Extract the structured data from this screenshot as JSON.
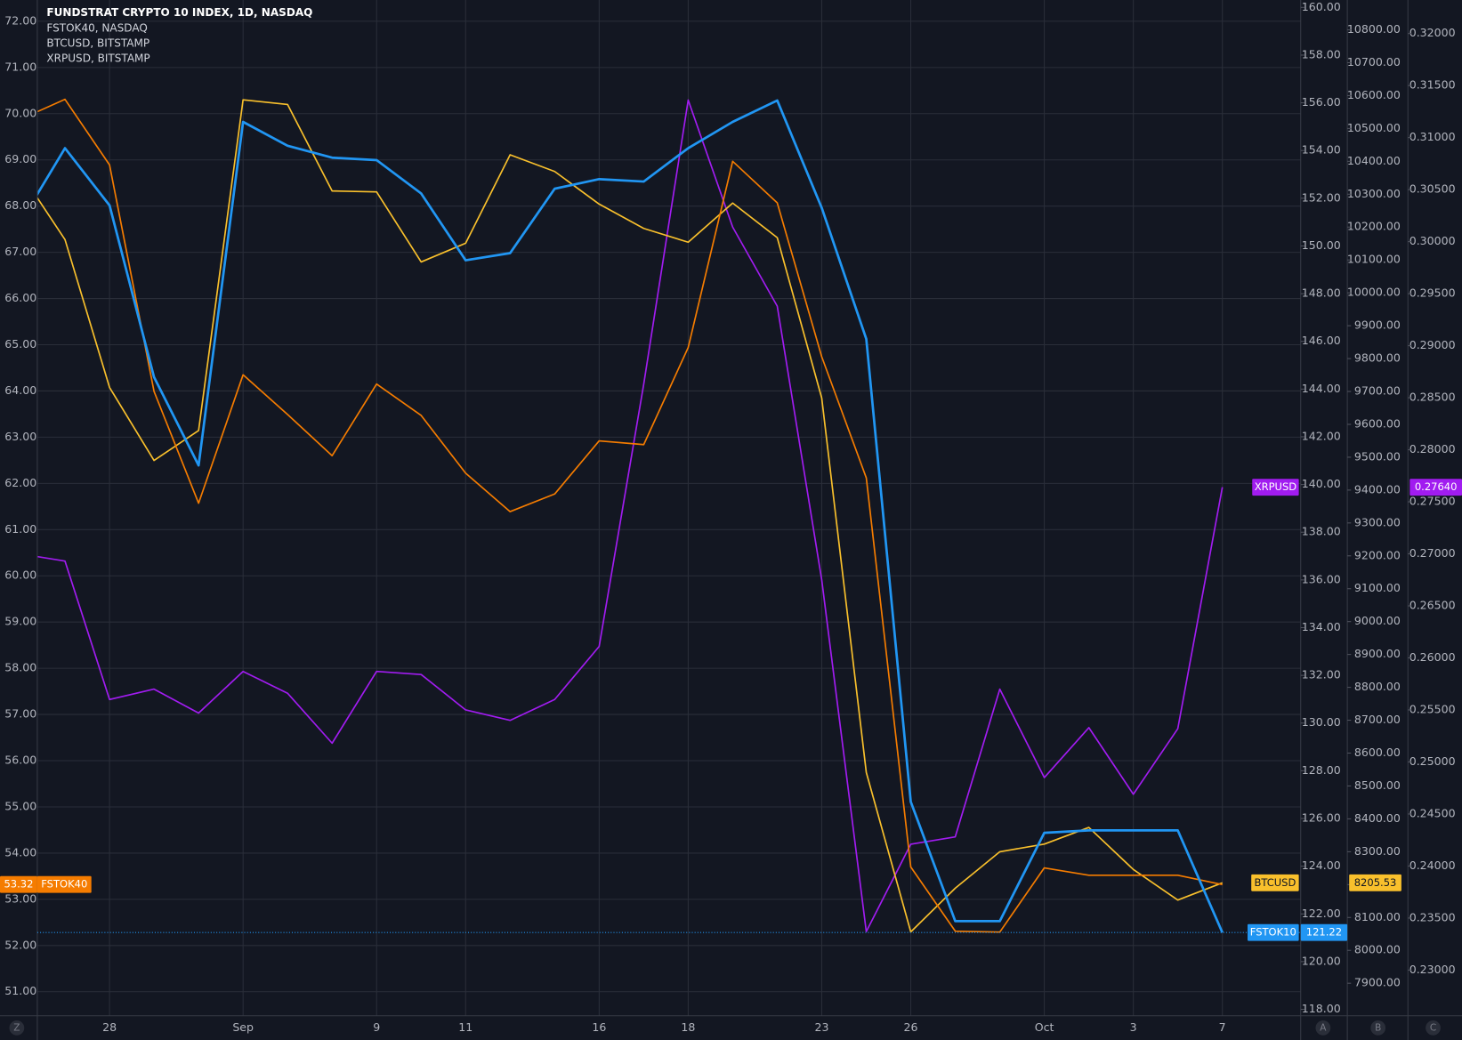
{
  "chart_data": {
    "type": "line",
    "background": "#131722",
    "grid": true,
    "categories": [
      null,
      null,
      "28",
      null,
      null,
      "Sep",
      null,
      null,
      "9",
      null,
      "11",
      null,
      null,
      "16",
      null,
      "18",
      null,
      null,
      "23",
      null,
      "26",
      null,
      null,
      "Oct",
      null,
      "3",
      null,
      "7"
    ],
    "axis_buttons": [
      "Z",
      "A",
      "B",
      "C"
    ],
    "ylim": [
      50.48,
      72.46
    ],
    "yticks": [
      {
        "value": 51,
        "label": "51.00"
      },
      {
        "value": 52,
        "label": "52.00"
      },
      {
        "value": 53,
        "label": "53.00"
      },
      {
        "value": 54,
        "label": "54.00"
      },
      {
        "value": 55,
        "label": "55.00"
      },
      {
        "value": 56,
        "label": "56.00"
      },
      {
        "value": 57,
        "label": "57.00"
      },
      {
        "value": 58,
        "label": "58.00"
      },
      {
        "value": 59,
        "label": "59.00"
      },
      {
        "value": 60,
        "label": "60.00"
      },
      {
        "value": 61,
        "label": "61.00"
      },
      {
        "value": 62,
        "label": "62.00"
      },
      {
        "value": 63,
        "label": "63.00"
      },
      {
        "value": 64,
        "label": "64.00"
      },
      {
        "value": 65,
        "label": "65.00"
      },
      {
        "value": 66,
        "label": "66.00"
      },
      {
        "value": 67,
        "label": "67.00"
      },
      {
        "value": 68,
        "label": "68.00"
      },
      {
        "value": 69,
        "label": "69.00"
      },
      {
        "value": 70,
        "label": "70.00"
      },
      {
        "value": 71,
        "label": "71.00"
      },
      {
        "value": 72,
        "label": "72.00"
      }
    ],
    "y2lim": [
      117.73,
      160.31
    ],
    "y2ticks": [
      {
        "value": 118,
        "label": "118.00"
      },
      {
        "value": 120,
        "label": "120.00"
      },
      {
        "value": 122,
        "label": "122.00"
      },
      {
        "value": 124,
        "label": "124.00"
      },
      {
        "value": 126,
        "label": "126.00"
      },
      {
        "value": 128,
        "label": "128.00"
      },
      {
        "value": 130,
        "label": "130.00"
      },
      {
        "value": 132,
        "label": "132.00"
      },
      {
        "value": 134,
        "label": "134.00"
      },
      {
        "value": 136,
        "label": "136.00"
      },
      {
        "value": 138,
        "label": "138.00"
      },
      {
        "value": 140,
        "label": "140.00"
      },
      {
        "value": 142,
        "label": "142.00"
      },
      {
        "value": 144,
        "label": "144.00"
      },
      {
        "value": 146,
        "label": "146.00"
      },
      {
        "value": 148,
        "label": "148.00"
      },
      {
        "value": 150,
        "label": "150.00"
      },
      {
        "value": 152,
        "label": "152.00"
      },
      {
        "value": 154,
        "label": "154.00"
      },
      {
        "value": 156,
        "label": "156.00"
      },
      {
        "value": 158,
        "label": "158.00"
      },
      {
        "value": 160,
        "label": "160.00"
      }
    ],
    "y3lim": [
      7801,
      10890.7
    ],
    "y3ticks": [
      {
        "value": 7900,
        "label": "7900.00"
      },
      {
        "value": 8000,
        "label": "8000.00"
      },
      {
        "value": 8100,
        "label": "8100.00"
      },
      {
        "value": 8200,
        "label": "8200.00"
      },
      {
        "value": 8300,
        "label": "8300.00"
      },
      {
        "value": 8400,
        "label": "8400.00"
      },
      {
        "value": 8500,
        "label": "8500.00"
      },
      {
        "value": 8600,
        "label": "8600.00"
      },
      {
        "value": 8700,
        "label": "8700.00"
      },
      {
        "value": 8800,
        "label": "8800.00"
      },
      {
        "value": 8900,
        "label": "8900.00"
      },
      {
        "value": 9000,
        "label": "9000.00"
      },
      {
        "value": 9100,
        "label": "9100.00"
      },
      {
        "value": 9200,
        "label": "9200.00"
      },
      {
        "value": 9300,
        "label": "9300.00"
      },
      {
        "value": 9400,
        "label": "9400.00"
      },
      {
        "value": 9500,
        "label": "9500.00"
      },
      {
        "value": 9600,
        "label": "9600.00"
      },
      {
        "value": 9700,
        "label": "9700.00"
      },
      {
        "value": 9800,
        "label": "9800.00"
      },
      {
        "value": 9900,
        "label": "9900.00"
      },
      {
        "value": 10000,
        "label": "10000.00"
      },
      {
        "value": 10100,
        "label": "10100.00"
      },
      {
        "value": 10200,
        "label": "10200.00"
      },
      {
        "value": 10300,
        "label": "10300.00"
      },
      {
        "value": 10400,
        "label": "10400.00"
      },
      {
        "value": 10500,
        "label": "10500.00"
      },
      {
        "value": 10600,
        "label": "10600.00"
      },
      {
        "value": 10700,
        "label": "10700.00"
      },
      {
        "value": 10800,
        "label": "10800.00"
      }
    ],
    "y4lim": [
      0.22561,
      0.32322
    ],
    "y4ticks": [
      {
        "value": 0.23,
        "label": "0.23000"
      },
      {
        "value": 0.235,
        "label": "0.23500"
      },
      {
        "value": 0.24,
        "label": "0.24000"
      },
      {
        "value": 0.245,
        "label": "0.24500"
      },
      {
        "value": 0.25,
        "label": "0.25000"
      },
      {
        "value": 0.255,
        "label": "0.25500"
      },
      {
        "value": 0.26,
        "label": "0.26000"
      },
      {
        "value": 0.265,
        "label": "0.26500"
      },
      {
        "value": 0.27,
        "label": "0.27000"
      },
      {
        "value": 0.275,
        "label": "0.27500"
      },
      {
        "value": 0.28,
        "label": "0.28000"
      },
      {
        "value": 0.285,
        "label": "0.28500"
      },
      {
        "value": 0.29,
        "label": "0.29000"
      },
      {
        "value": 0.295,
        "label": "0.29500"
      },
      {
        "value": 0.3,
        "label": "0.30000"
      },
      {
        "value": 0.305,
        "label": "0.30500"
      },
      {
        "value": 0.31,
        "label": "0.31000"
      },
      {
        "value": 0.315,
        "label": "0.31500"
      },
      {
        "value": 0.32,
        "label": "0.32000"
      }
    ],
    "series": [
      {
        "name": "FSTOK10",
        "legend": "FUNDSTRAT CRYPTO 10 INDEX, 1D, NASDAQ",
        "axis": "y2",
        "color": "#2196f3",
        "tag_text_color": "#ffffff",
        "price_line": true,
        "values": [
          151.0,
          154.1,
          151.7,
          144.5,
          140.8,
          155.2,
          154.2,
          153.7,
          153.6,
          152.2,
          149.4,
          149.7,
          152.4,
          152.8,
          152.7,
          154.1,
          155.2,
          156.1,
          151.6,
          146.1,
          126.7,
          121.7,
          121.7,
          125.4,
          125.5,
          125.5,
          125.5,
          121.22
        ]
      },
      {
        "name": "FSTOK40",
        "legend": "FSTOK40, NASDAQ",
        "axis": "y",
        "color": "#f57c00",
        "tag_text_color": "#ffffff",
        "values": [
          69.88,
          70.31,
          68.89,
          63.99,
          61.57,
          64.35,
          63.49,
          62.6,
          64.15,
          63.47,
          62.22,
          61.39,
          61.77,
          62.92,
          62.84,
          64.94,
          68.97,
          68.07,
          64.74,
          62.12,
          53.7,
          52.31,
          52.29,
          53.68,
          53.52,
          53.52,
          53.52,
          53.32
        ]
      },
      {
        "name": "BTCUSD",
        "legend": "BTCUSD, BITSTAMP",
        "axis": "y3",
        "color": "#f9c02c",
        "tag_text_color": "#131722",
        "values": [
          10366,
          10162,
          9712,
          9490,
          9581,
          10587,
          10573,
          10310,
          10307,
          10094,
          10151,
          10420,
          10369,
          10270,
          10196,
          10154,
          10273,
          10168,
          9680,
          8541,
          8056,
          8189,
          8300,
          8323,
          8374,
          8246,
          8153,
          8205.53
        ]
      },
      {
        "name": "XRPUSD",
        "legend": "XRPUSD, BITSTAMP",
        "axis": "y4",
        "color": "#a11cf0",
        "tag_text_color": "#ffffff",
        "values": [
          0.27,
          0.2693,
          0.256,
          0.257,
          0.2547,
          0.2587,
          0.2566,
          0.2518,
          0.2587,
          0.2584,
          0.255,
          0.254,
          0.256,
          0.2611,
          0.2863,
          0.3136,
          0.3014,
          0.2938,
          0.2675,
          0.2337,
          0.2421,
          0.2428,
          0.257,
          0.2485,
          0.2533,
          0.2469,
          0.2532,
          0.2764
        ],
        "value_labels": [
          null,
          null,
          null,
          null,
          null,
          null,
          null,
          null,
          null,
          null,
          null,
          null,
          null,
          null,
          null,
          null,
          null,
          null,
          null,
          null,
          null,
          null,
          null,
          null,
          null,
          null,
          null,
          "0.27640"
        ]
      }
    ]
  }
}
